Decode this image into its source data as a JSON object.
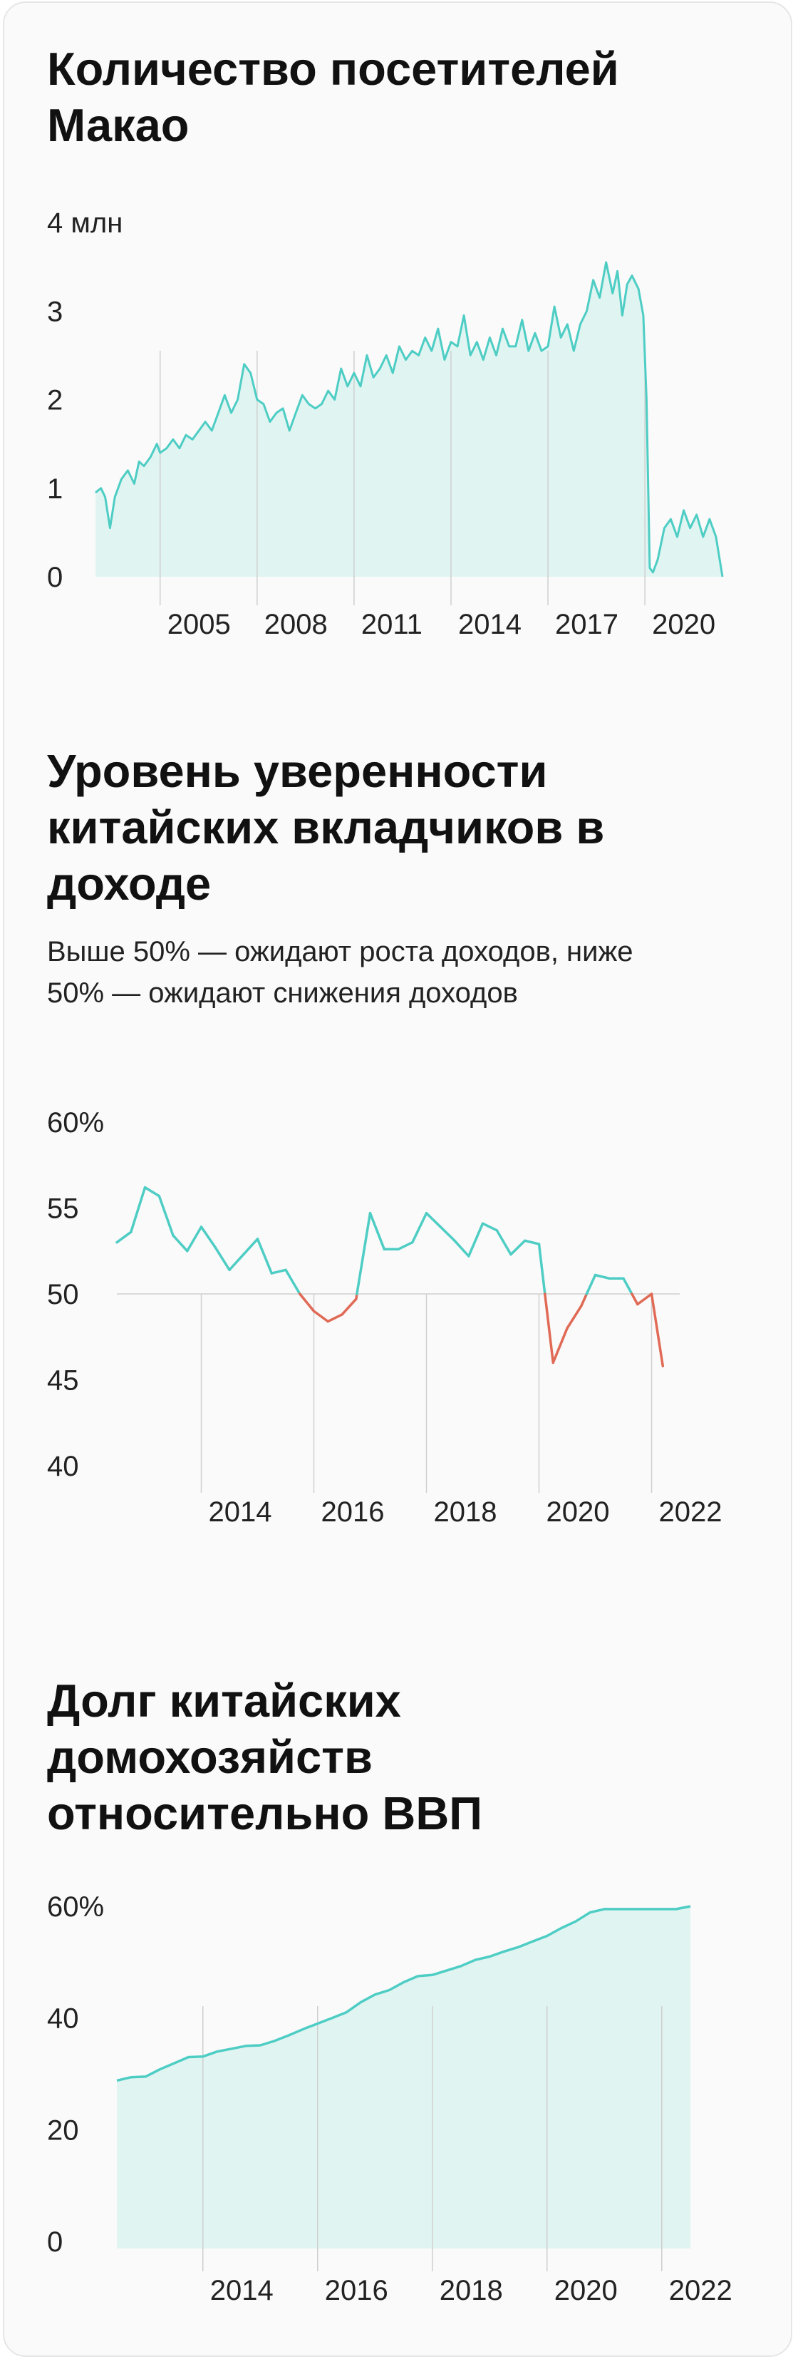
{
  "charts": [
    {
      "title": "Количество посетителей Макао",
      "subtitle": "",
      "chart_data": {
        "type": "area",
        "title": "Количество посетителей Макао",
        "ylabel": "",
        "xlabel": "",
        "ylim": [
          0,
          4
        ],
        "y_ticks": [
          0,
          1,
          2,
          3,
          4
        ],
        "y_tick_labels": [
          "0",
          "1",
          "2",
          "3",
          "4 млн"
        ],
        "x_ticks": [
          2005,
          2008,
          2011,
          2014,
          2017,
          2020
        ],
        "x_tick_labels": [
          "2005",
          "2008",
          "2011",
          "2014",
          "2017",
          "2020"
        ],
        "xlim": [
          2003.0,
          2022.4
        ],
        "grid": "vertical",
        "legend": "none",
        "series": [
          {
            "x": [
              2003.0,
              2003.17,
              2003.3,
              2003.45,
              2003.6,
              2003.8,
              2004.0,
              2004.2,
              2004.35,
              2004.5,
              2004.7,
              2004.9,
              2005.0,
              2005.2,
              2005.4,
              2005.6,
              2005.8,
              2006.0,
              2006.2,
              2006.4,
              2006.6,
              2006.8,
              2007.0,
              2007.2,
              2007.4,
              2007.6,
              2007.8,
              2008.0,
              2008.2,
              2008.4,
              2008.6,
              2008.8,
              2009.0,
              2009.2,
              2009.4,
              2009.6,
              2009.8,
              2010.0,
              2010.2,
              2010.4,
              2010.6,
              2010.8,
              2011.0,
              2011.2,
              2011.4,
              2011.6,
              2011.8,
              2012.0,
              2012.2,
              2012.4,
              2012.6,
              2012.8,
              2013.0,
              2013.2,
              2013.4,
              2013.6,
              2013.8,
              2014.0,
              2014.2,
              2014.4,
              2014.6,
              2014.8,
              2015.0,
              2015.2,
              2015.4,
              2015.6,
              2015.8,
              2016.0,
              2016.2,
              2016.4,
              2016.6,
              2016.8,
              2017.0,
              2017.2,
              2017.4,
              2017.6,
              2017.8,
              2018.0,
              2018.2,
              2018.4,
              2018.6,
              2018.8,
              2019.0,
              2019.15,
              2019.3,
              2019.45,
              2019.6,
              2019.8,
              2019.95,
              2020.05,
              2020.15,
              2020.25,
              2020.4,
              2020.6,
              2020.8,
              2021.0,
              2021.2,
              2021.4,
              2021.6,
              2021.8,
              2022.0,
              2022.2,
              2022.4
            ],
            "values": [
              0.95,
              1.0,
              0.9,
              0.55,
              0.9,
              1.1,
              1.2,
              1.05,
              1.3,
              1.25,
              1.35,
              1.5,
              1.4,
              1.45,
              1.55,
              1.45,
              1.6,
              1.55,
              1.65,
              1.75,
              1.65,
              1.85,
              2.05,
              1.85,
              2.0,
              2.4,
              2.3,
              2.0,
              1.95,
              1.75,
              1.85,
              1.9,
              1.65,
              1.85,
              2.05,
              1.95,
              1.9,
              1.95,
              2.1,
              2.0,
              2.35,
              2.15,
              2.3,
              2.15,
              2.5,
              2.25,
              2.35,
              2.5,
              2.3,
              2.6,
              2.45,
              2.55,
              2.5,
              2.7,
              2.55,
              2.8,
              2.45,
              2.65,
              2.6,
              2.95,
              2.5,
              2.65,
              2.45,
              2.7,
              2.5,
              2.8,
              2.6,
              2.6,
              2.9,
              2.55,
              2.75,
              2.55,
              2.6,
              3.05,
              2.7,
              2.85,
              2.55,
              2.85,
              3.0,
              3.35,
              3.15,
              3.55,
              3.2,
              3.45,
              2.95,
              3.3,
              3.4,
              3.25,
              2.95,
              2.0,
              0.1,
              0.05,
              0.2,
              0.55,
              0.65,
              0.45,
              0.75,
              0.55,
              0.7,
              0.45,
              0.65,
              0.45,
              0.0
            ]
          }
        ]
      }
    },
    {
      "title": "Уровень уверенности китайских вкладчиков в доходе",
      "subtitle": "Выше 50% — ожидают роста доходов, ниже 50% — ожидают снижения доходов",
      "chart_data": {
        "type": "line",
        "title": "Уровень уверенности китайских вкладчиков в доходе",
        "ylabel": "",
        "xlabel": "",
        "ylim": [
          40,
          60
        ],
        "y_ticks": [
          40,
          45,
          50,
          55,
          60
        ],
        "y_tick_labels": [
          "40",
          "45",
          "50",
          "55",
          "60%"
        ],
        "x_ticks": [
          2014,
          2016,
          2018,
          2020,
          2022
        ],
        "x_tick_labels": [
          "2014",
          "2016",
          "2018",
          "2020",
          "2022"
        ],
        "xlim": [
          2012.5,
          2022.5
        ],
        "threshold": 50,
        "colors": {
          "above": "#4ecdc4",
          "below": "#e06a55"
        },
        "grid": "vertical",
        "legend": "none",
        "series": [
          {
            "x": [
              2012.5,
              2012.75,
              2013.0,
              2013.25,
              2013.5,
              2013.75,
              2014.0,
              2014.25,
              2014.5,
              2014.75,
              2015.0,
              2015.25,
              2015.5,
              2015.75,
              2016.0,
              2016.25,
              2016.5,
              2016.75,
              2017.0,
              2017.25,
              2017.5,
              2017.75,
              2018.0,
              2018.25,
              2018.5,
              2018.75,
              2019.0,
              2019.25,
              2019.5,
              2019.75,
              2020.0,
              2020.25,
              2020.5,
              2020.75,
              2021.0,
              2021.25,
              2021.5,
              2021.75,
              2022.0,
              2022.2
            ],
            "values": [
              53.0,
              53.6,
              56.2,
              55.7,
              53.4,
              52.5,
              53.9,
              52.7,
              51.4,
              52.3,
              53.2,
              51.2,
              51.4,
              50.0,
              49.0,
              48.4,
              48.8,
              49.7,
              54.7,
              52.6,
              52.6,
              53.0,
              54.7,
              53.9,
              53.1,
              52.2,
              54.1,
              53.7,
              52.3,
              53.1,
              52.9,
              46.0,
              48.0,
              49.3,
              51.1,
              50.9,
              50.9,
              49.4,
              50.0,
              45.8
            ]
          }
        ]
      }
    },
    {
      "title": "Долг китайских домохозяйств относительно ВВП",
      "subtitle": "",
      "chart_data": {
        "type": "area",
        "title": "Долг китайских домохозяйств относительно ВВП",
        "ylabel": "",
        "xlabel": "",
        "ylim": [
          0,
          60
        ],
        "y_ticks": [
          0,
          20,
          40,
          60
        ],
        "y_tick_labels": [
          "0",
          "20",
          "40",
          "60%"
        ],
        "x_ticks": [
          2014,
          2016,
          2018,
          2020,
          2022
        ],
        "x_tick_labels": [
          "2014",
          "2016",
          "2018",
          "2020",
          "2022"
        ],
        "xlim": [
          2012.5,
          2022.5
        ],
        "grid": "vertical",
        "legend": "none",
        "series": [
          {
            "x": [
              2012.5,
              2012.75,
              2013.0,
              2013.25,
              2013.5,
              2013.75,
              2014.0,
              2014.25,
              2014.5,
              2014.75,
              2015.0,
              2015.25,
              2015.5,
              2015.75,
              2016.0,
              2016.25,
              2016.5,
              2016.75,
              2017.0,
              2017.25,
              2017.5,
              2017.75,
              2018.0,
              2018.25,
              2018.5,
              2018.75,
              2019.0,
              2019.25,
              2019.5,
              2019.75,
              2020.0,
              2020.25,
              2020.5,
              2020.75,
              2021.0,
              2021.25,
              2021.5,
              2021.75,
              2022.0,
              2022.25,
              2022.5
            ],
            "values": [
              28.8,
              29.4,
              29.5,
              30.8,
              31.9,
              33.0,
              33.1,
              34.0,
              34.5,
              35.0,
              35.1,
              35.9,
              36.9,
              38.0,
              39.0,
              40.0,
              41.0,
              42.8,
              44.2,
              45.0,
              46.4,
              47.5,
              47.7,
              48.5,
              49.3,
              50.4,
              51.0,
              51.9,
              52.7,
              53.7,
              54.7,
              56.1,
              57.3,
              58.9,
              59.5,
              59.5,
              59.5,
              59.5,
              59.5,
              59.5,
              60.0
            ]
          }
        ]
      }
    }
  ]
}
